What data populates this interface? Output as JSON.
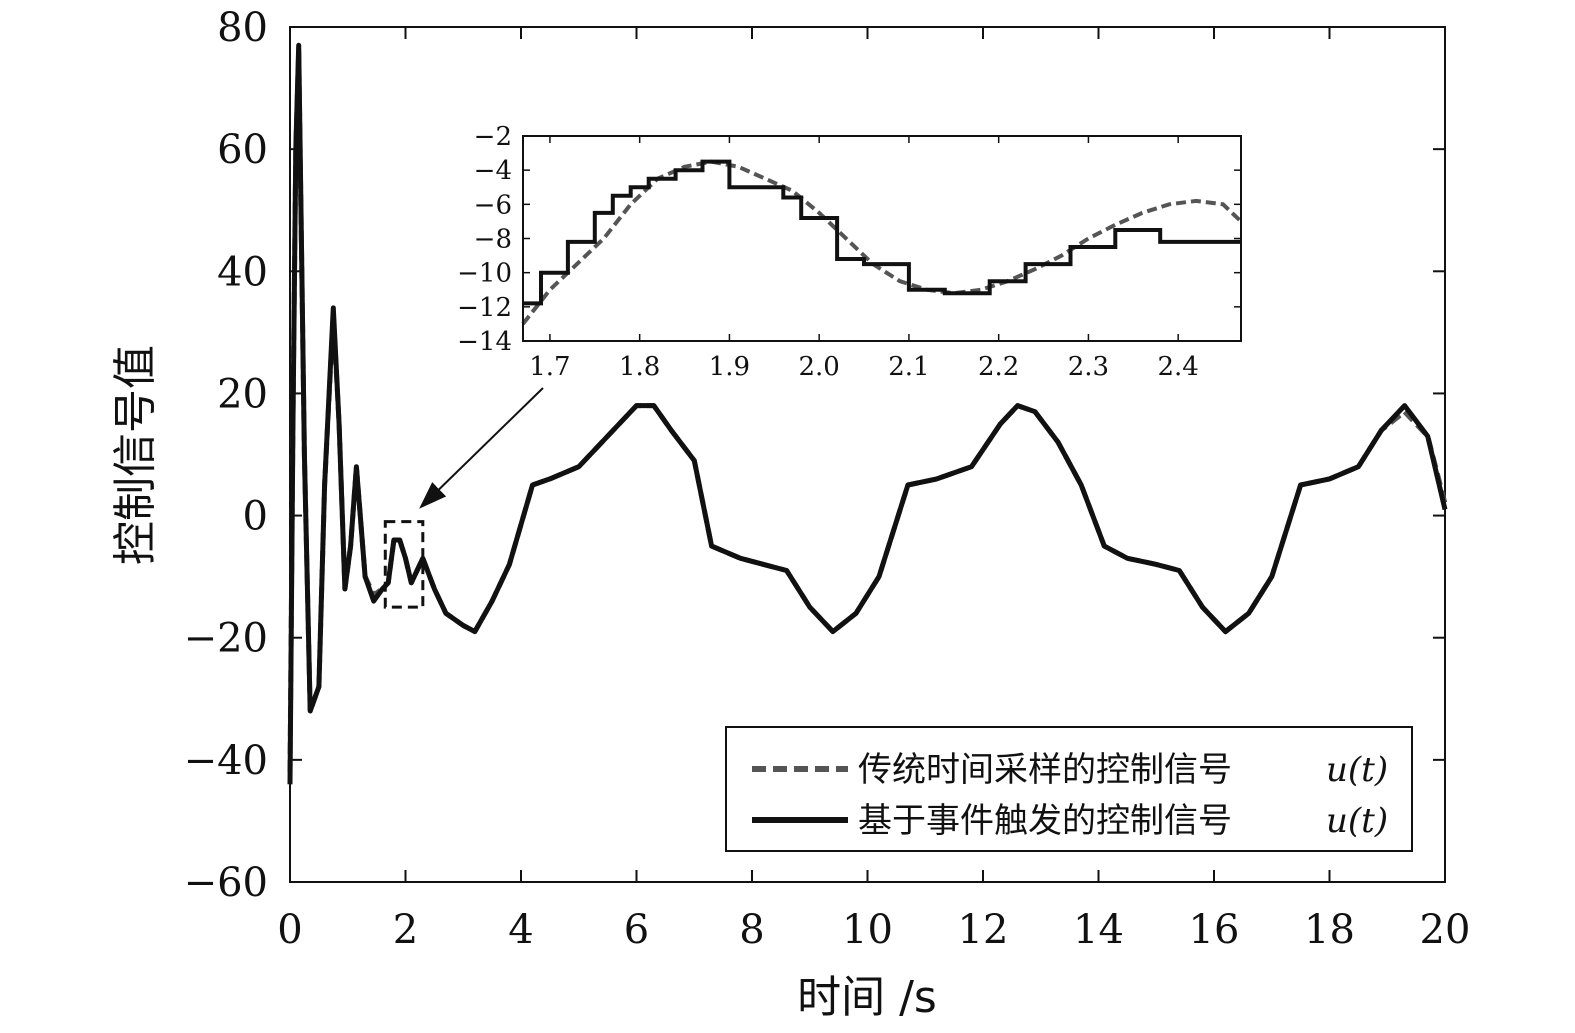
{
  "chart_data": {
    "type": "line",
    "xlabel": "时间 /s",
    "ylabel": "控制信号值",
    "xlim": [
      0,
      20
    ],
    "ylim": [
      -60,
      80
    ],
    "xticks": [
      0,
      2,
      4,
      6,
      8,
      10,
      12,
      14,
      16,
      18,
      20
    ],
    "yticks": [
      -60,
      -40,
      -20,
      0,
      20,
      40,
      60,
      80
    ],
    "xtick_labels": [
      "0",
      "2",
      "4",
      "6",
      "8",
      "10",
      "12",
      "14",
      "16",
      "18",
      "20"
    ],
    "ytick_labels": [
      "−60",
      "−40",
      "−20",
      "0",
      "20",
      "40",
      "60",
      "80"
    ],
    "grid": false,
    "legend_position": "bottom-right",
    "legend": [
      {
        "label": "传统时间采样的控制信号",
        "math": "u(t)",
        "style": "dashed",
        "color": "#555555"
      },
      {
        "label": "基于事件触发的控制信号",
        "math": "u(t)",
        "style": "solid",
        "color": "#111111"
      }
    ],
    "series": [
      {
        "name": "传统时间采样的控制信号 u(t)",
        "style": "dashed",
        "color": "#555555",
        "x": [
          0,
          0.05,
          0.1,
          0.15,
          0.25,
          0.35,
          0.5,
          0.6,
          0.75,
          0.85,
          0.95,
          1.05,
          1.15,
          1.3,
          1.45,
          1.6,
          1.7,
          1.8,
          1.9,
          2.0,
          2.1,
          2.2,
          2.3,
          2.5,
          2.7,
          3.0,
          3.2,
          3.5,
          3.8,
          4.2,
          4.5,
          5.0,
          5.5,
          6.0,
          6.3,
          6.6,
          7.0,
          7.3,
          7.8,
          8.2,
          8.6,
          9.0,
          9.4,
          9.8,
          10.2,
          10.7,
          11.2,
          11.8,
          12.3,
          12.6,
          12.9,
          13.3,
          13.7,
          14.1,
          14.5,
          15.0,
          15.4,
          15.8,
          16.2,
          16.6,
          17.0,
          17.5,
          18.0,
          18.5,
          18.9,
          19.3,
          19.7,
          20.0
        ],
        "y": [
          -42,
          15,
          60,
          76,
          10,
          -32,
          -28,
          5,
          33,
          15,
          -12,
          -5,
          8,
          -10,
          -13,
          -12,
          -11,
          -4,
          -4,
          -7,
          -11,
          -9,
          -7,
          -12,
          -16,
          -18,
          -19,
          -14,
          -8,
          5,
          6,
          8,
          13,
          18,
          18,
          14,
          9,
          -5,
          -7,
          -8,
          -9,
          -15,
          -19,
          -16,
          -10,
          5,
          6,
          8,
          15,
          18,
          17,
          12,
          5,
          -5,
          -7,
          -8,
          -9,
          -15,
          -19,
          -16,
          -10,
          5,
          6,
          8,
          14,
          17,
          13,
          2
        ]
      },
      {
        "name": "基于事件触发的控制信号 u(t)",
        "style": "solid",
        "color": "#111111",
        "x": [
          0,
          0.05,
          0.1,
          0.15,
          0.25,
          0.35,
          0.5,
          0.6,
          0.75,
          0.85,
          0.95,
          1.05,
          1.15,
          1.3,
          1.45,
          1.6,
          1.7,
          1.8,
          1.9,
          2.0,
          2.1,
          2.2,
          2.3,
          2.5,
          2.7,
          3.0,
          3.2,
          3.5,
          3.8,
          4.2,
          4.5,
          5.0,
          5.5,
          6.0,
          6.3,
          6.6,
          7.0,
          7.3,
          7.8,
          8.2,
          8.6,
          9.0,
          9.4,
          9.8,
          10.2,
          10.7,
          11.2,
          11.8,
          12.3,
          12.6,
          12.9,
          13.3,
          13.7,
          14.1,
          14.5,
          15.0,
          15.4,
          15.8,
          16.2,
          16.6,
          17.0,
          17.5,
          18.0,
          18.5,
          18.9,
          19.3,
          19.7,
          20.0
        ],
        "y": [
          -44,
          14,
          60,
          77,
          10,
          -32,
          -28,
          5,
          34,
          15,
          -12,
          -5,
          8,
          -10,
          -14,
          -12,
          -11,
          -4,
          -4,
          -7,
          -11,
          -9,
          -7,
          -12,
          -16,
          -18,
          -19,
          -14,
          -8,
          5,
          6,
          8,
          13,
          18,
          18,
          14,
          9,
          -5,
          -7,
          -8,
          -9,
          -15,
          -19,
          -16,
          -10,
          5,
          6,
          8,
          15,
          18,
          17,
          12,
          5,
          -5,
          -7,
          -8,
          -9,
          -15,
          -19,
          -16,
          -10,
          5,
          6,
          8,
          14,
          18,
          13,
          1
        ]
      }
    ],
    "inset": {
      "xlim": [
        1.67,
        2.47
      ],
      "ylim": [
        -14,
        -2
      ],
      "xticks": [
        1.7,
        1.8,
        1.9,
        2.0,
        2.1,
        2.2,
        2.3,
        2.4
      ],
      "yticks": [
        -14,
        -12,
        -10,
        -8,
        -6,
        -4,
        -2
      ],
      "xtick_labels": [
        "1.7",
        "1.8",
        "1.9",
        "2.0",
        "2.1",
        "2.2",
        "2.3",
        "2.4"
      ],
      "ytick_labels": [
        "−14",
        "−12",
        "−10",
        "−8",
        "−6",
        "−4",
        "−2"
      ],
      "zoom_region": {
        "x": [
          1.65,
          2.3
        ],
        "y": [
          -15,
          -1
        ]
      },
      "series": [
        {
          "name": "传统时间采样的控制信号 u(t)",
          "style": "dashed",
          "color": "#555555",
          "x": [
            1.67,
            1.7,
            1.73,
            1.76,
            1.79,
            1.82,
            1.85,
            1.88,
            1.91,
            1.94,
            1.97,
            2.0,
            2.03,
            2.06,
            2.09,
            2.12,
            2.15,
            2.18,
            2.21,
            2.24,
            2.27,
            2.3,
            2.33,
            2.36,
            2.39,
            2.42,
            2.45,
            2.47
          ],
          "y": [
            -13,
            -11,
            -9.5,
            -8,
            -6,
            -4.5,
            -3.8,
            -3.5,
            -3.8,
            -4.5,
            -5.2,
            -6.5,
            -8,
            -9.5,
            -10.5,
            -11,
            -11.2,
            -11,
            -10.5,
            -9.8,
            -9,
            -8,
            -7.2,
            -6.5,
            -6,
            -5.8,
            -6,
            -7
          ]
        },
        {
          "name": "基于事件触发的控制信号 u(t)",
          "style": "solid",
          "color": "#111111",
          "x": [
            1.67,
            1.69,
            1.69,
            1.72,
            1.72,
            1.75,
            1.75,
            1.77,
            1.77,
            1.79,
            1.79,
            1.81,
            1.81,
            1.84,
            1.84,
            1.87,
            1.87,
            1.9,
            1.9,
            1.96,
            1.96,
            1.98,
            1.98,
            2.02,
            2.02,
            2.05,
            2.05,
            2.1,
            2.1,
            2.14,
            2.14,
            2.19,
            2.19,
            2.23,
            2.23,
            2.28,
            2.28,
            2.33,
            2.33,
            2.38,
            2.38,
            2.47
          ],
          "y": [
            -11.8,
            -11.8,
            -10,
            -10,
            -8.2,
            -8.2,
            -6.5,
            -6.5,
            -5.5,
            -5.5,
            -5,
            -5,
            -4.5,
            -4.5,
            -4,
            -4,
            -3.5,
            -3.5,
            -5,
            -5,
            -5.6,
            -5.6,
            -6.8,
            -6.8,
            -9.2,
            -9.2,
            -9.5,
            -9.5,
            -11,
            -11,
            -11.2,
            -11.2,
            -10.5,
            -10.5,
            -9.5,
            -9.5,
            -8.5,
            -8.5,
            -7.5,
            -7.5,
            -8.2,
            -8.2
          ]
        }
      ]
    }
  }
}
